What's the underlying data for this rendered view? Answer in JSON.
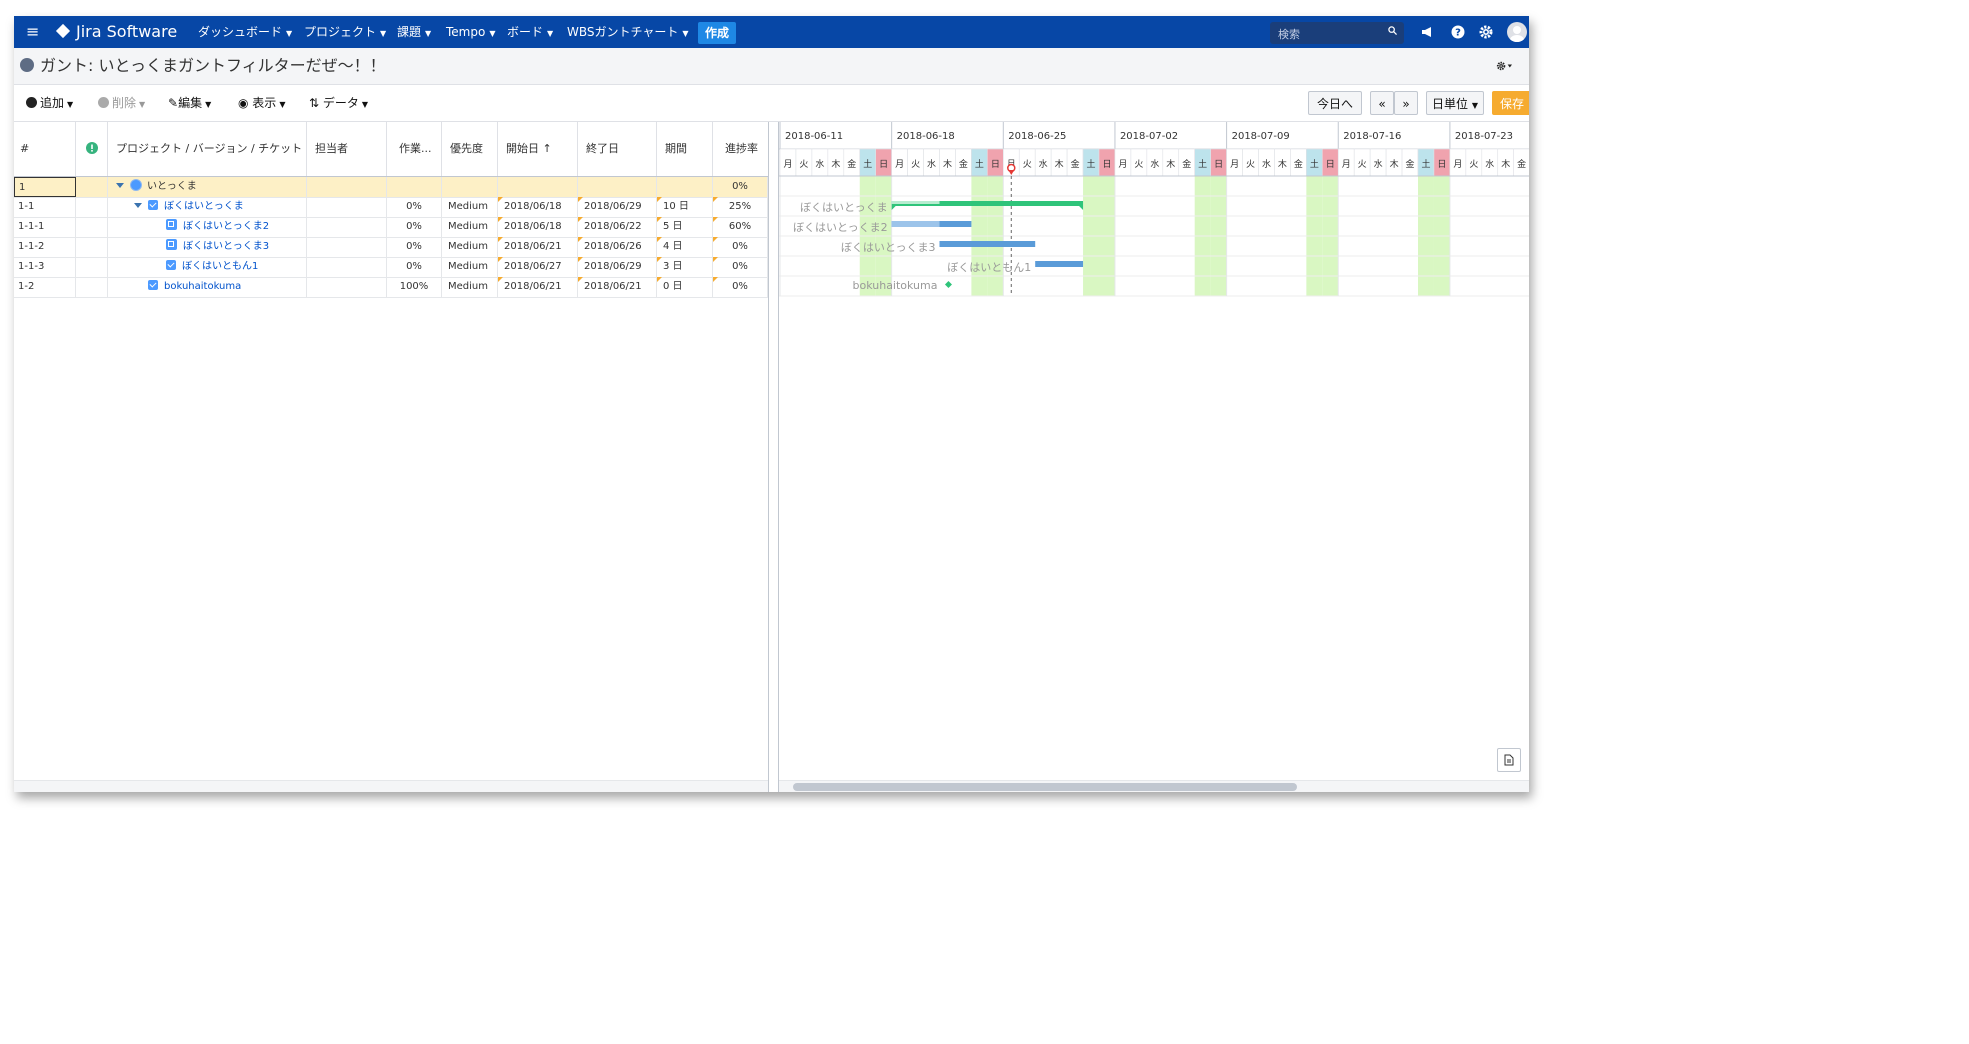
{
  "nav": {
    "app_title": "Jira Software",
    "items": [
      {
        "label": "ダッシュボード",
        "x": 184,
        "caret": true
      },
      {
        "label": "プロジェクト",
        "x": 290,
        "caret": true
      },
      {
        "label": "課題",
        "x": 383,
        "caret": true
      },
      {
        "label": "Tempo",
        "x": 432,
        "caret": true
      },
      {
        "label": "ボード",
        "x": 493,
        "caret": true
      },
      {
        "label": "WBSガントチャート",
        "x": 553,
        "caret": true
      }
    ],
    "create_label": "作成",
    "search_placeholder": "検索"
  },
  "title": {
    "text": "ガント: いとっくまガントフィルターだぜ～！！"
  },
  "toolbar": {
    "add": "追加",
    "delete": "削除",
    "edit": "編集",
    "view": "表示",
    "data": "データ",
    "today": "今日へ",
    "prev": "«",
    "next": "»",
    "unit": "日単位",
    "save": "保存"
  },
  "grid": {
    "columns": [
      {
        "key": "num",
        "label": "#"
      },
      {
        "key": "alert",
        "label": ""
      },
      {
        "key": "name",
        "label": "プロジェクト / バージョン / チケット"
      },
      {
        "key": "assignee",
        "label": "担当者"
      },
      {
        "key": "work",
        "label": "作業..."
      },
      {
        "key": "priority",
        "label": "優先度"
      },
      {
        "key": "start",
        "label": "開始日 ↑"
      },
      {
        "key": "end",
        "label": "終了日"
      },
      {
        "key": "duration",
        "label": "期間"
      },
      {
        "key": "progress",
        "label": "進捗率"
      }
    ],
    "rows": [
      {
        "num": "1",
        "name": "いとっくま",
        "type": "project",
        "level": 0,
        "work": "",
        "priority": "",
        "start": "",
        "end": "",
        "duration": "",
        "progress": "0%"
      },
      {
        "num": "1-1",
        "name": "ぼくはいとっくま",
        "type": "task",
        "level": 1,
        "work": "0%",
        "priority": "Medium",
        "start": "2018/06/18",
        "end": "2018/06/29",
        "duration": "10 日",
        "progress": "25%"
      },
      {
        "num": "1-1-1",
        "name": "ぼくはいとっくま2",
        "type": "subtask",
        "level": 2,
        "work": "0%",
        "priority": "Medium",
        "start": "2018/06/18",
        "end": "2018/06/22",
        "duration": "5 日",
        "progress": "60%"
      },
      {
        "num": "1-1-2",
        "name": "ぼくはいとっくま3",
        "type": "subtask",
        "level": 2,
        "work": "0%",
        "priority": "Medium",
        "start": "2018/06/21",
        "end": "2018/06/26",
        "duration": "4 日",
        "progress": "0%"
      },
      {
        "num": "1-1-3",
        "name": "ぼくはいともん1",
        "type": "task",
        "level": 2,
        "work": "0%",
        "priority": "Medium",
        "start": "2018/06/27",
        "end": "2018/06/29",
        "duration": "3 日",
        "progress": "0%"
      },
      {
        "num": "1-2",
        "name": "bokuhaitokuma",
        "type": "task",
        "level": 1,
        "work": "100%",
        "priority": "Medium",
        "start": "2018/06/21",
        "end": "2018/06/21",
        "duration": "0 日",
        "progress": "0%"
      }
    ]
  },
  "gantt": {
    "weeks": [
      "2018-06-11",
      "2018-06-18",
      "2018-06-25",
      "2018-07-02",
      "2018-07-09",
      "2018-07-16",
      "2018-07-23"
    ],
    "days": [
      "月",
      "火",
      "水",
      "木",
      "金",
      "土",
      "日"
    ],
    "today_date": "2018-06-25",
    "bars": [
      {
        "label": "ぼくはいとっくま",
        "start": "2018-06-18",
        "end": "2018-06-29",
        "progress": 0.25,
        "kind": "summary"
      },
      {
        "label": "ぼくはいとっくま2",
        "start": "2018-06-18",
        "end": "2018-06-22",
        "progress": 0.6,
        "kind": "task"
      },
      {
        "label": "ぼくはいとっくま3",
        "start": "2018-06-21",
        "end": "2018-06-26",
        "progress": 0,
        "kind": "task"
      },
      {
        "label": "ぼくはいともん1",
        "start": "2018-06-27",
        "end": "2018-06-29",
        "progress": 0,
        "kind": "task"
      },
      {
        "label": "bokuhaitokuma",
        "start": "2018-06-21",
        "end": "2018-06-21",
        "progress": 0,
        "kind": "milestone"
      }
    ]
  },
  "colors": {
    "nav_bg": "#0747a6",
    "create_btn": "#1e88e5",
    "save_btn": "#f6ab2f",
    "highlight_row": "#fdf0c6",
    "sat": "#bde3ec",
    "sun": "#f0a3ae",
    "weekend_col": "#d9f7c2",
    "summary_bar": "#2fc47a",
    "task_bar": "#5a9bd8",
    "today_line": "#e53935"
  }
}
